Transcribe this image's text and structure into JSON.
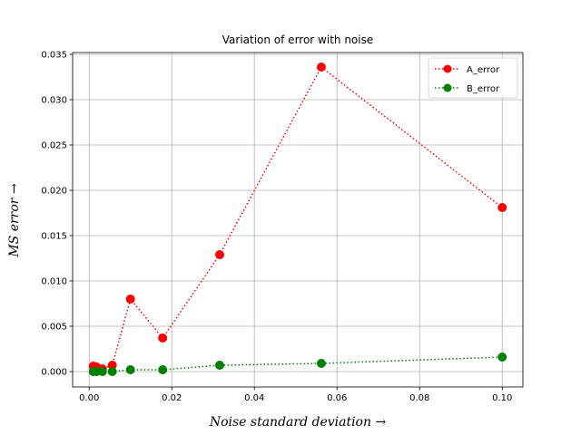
{
  "chart_data": {
    "type": "line",
    "title": "Variation of error with noise",
    "xlabel": "Noise standard deviation →",
    "ylabel": "MS error →",
    "xlim": [
      -0.004,
      0.105
    ],
    "ylim": [
      -0.0017,
      0.0352
    ],
    "x_ticks": [
      0.0,
      0.02,
      0.04,
      0.06,
      0.08,
      0.1
    ],
    "x_tick_labels": [
      "0.00",
      "0.02",
      "0.04",
      "0.06",
      "0.08",
      "0.10"
    ],
    "y_ticks": [
      0.0,
      0.005,
      0.01,
      0.015,
      0.02,
      0.025,
      0.03,
      0.035
    ],
    "y_tick_labels": [
      "0.000",
      "0.005",
      "0.010",
      "0.015",
      "0.020",
      "0.025",
      "0.030",
      "0.035"
    ],
    "grid": true,
    "legend_position": "top-right",
    "series": [
      {
        "name": "A_error",
        "color": "#ff0000",
        "line_style": "dotted",
        "marker": "circle",
        "points": [
          {
            "x": 0.001,
            "y": 0.0006
          },
          {
            "x": 0.0018,
            "y": 0.0005
          },
          {
            "x": 0.0032,
            "y": 0.0003
          },
          {
            "x": 0.0056,
            "y": 0.0007
          },
          {
            "x": 0.01,
            "y": 0.008
          },
          {
            "x": 0.0178,
            "y": 0.0037
          },
          {
            "x": 0.0316,
            "y": 0.0129
          },
          {
            "x": 0.0562,
            "y": 0.0336
          },
          {
            "x": 0.1,
            "y": 0.0181
          }
        ]
      },
      {
        "name": "B_error",
        "color": "#008000",
        "line_style": "dotted",
        "marker": "circle",
        "points": [
          {
            "x": 0.001,
            "y": 0.0
          },
          {
            "x": 0.0018,
            "y": 0.0
          },
          {
            "x": 0.0032,
            "y": 0.0
          },
          {
            "x": 0.0056,
            "y": 0.0
          },
          {
            "x": 0.01,
            "y": 0.0002
          },
          {
            "x": 0.0178,
            "y": 0.0002
          },
          {
            "x": 0.0316,
            "y": 0.0007
          },
          {
            "x": 0.0562,
            "y": 0.0009
          },
          {
            "x": 0.1,
            "y": 0.0016
          }
        ]
      }
    ]
  }
}
